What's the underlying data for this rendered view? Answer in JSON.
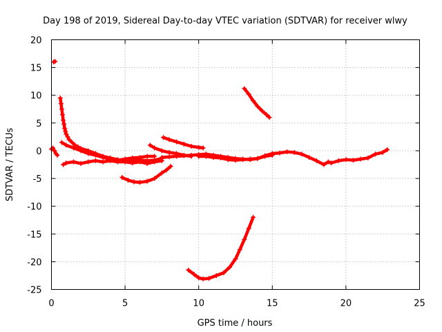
{
  "chart_data": {
    "type": "scatter",
    "title": "Day 198 of 2019, Sidereal Day-to-day VTEC variation (SDTVAR) for receiver wlwy",
    "xlabel": "GPS time / hours",
    "ylabel": "SDTVAR / TECUs",
    "xlim": [
      0,
      25
    ],
    "ylim": [
      -25,
      20
    ],
    "xticks": [
      0,
      5,
      10,
      15,
      20,
      25
    ],
    "yticks": [
      -25,
      -20,
      -15,
      -10,
      -5,
      0,
      5,
      10,
      15,
      20
    ],
    "grid": true,
    "marker": "+",
    "color": "#ff0000",
    "series": [
      {
        "name": "start-cluster",
        "points": [
          [
            0.0,
            0.3
          ],
          [
            0.1,
            0.5
          ],
          [
            0.2,
            0.0
          ],
          [
            0.3,
            -0.5
          ],
          [
            0.4,
            -0.8
          ]
        ]
      },
      {
        "name": "isolated-high",
        "points": [
          [
            0.15,
            16.0
          ],
          [
            0.25,
            16.1
          ]
        ]
      },
      {
        "name": "decay-spike",
        "points": [
          [
            0.6,
            9.5
          ],
          [
            0.65,
            8.5
          ],
          [
            0.7,
            7.5
          ],
          [
            0.75,
            6.5
          ],
          [
            0.8,
            5.5
          ],
          [
            0.85,
            4.8
          ],
          [
            0.9,
            4.0
          ],
          [
            0.95,
            3.5
          ],
          [
            1.0,
            3.0
          ],
          [
            1.1,
            2.5
          ],
          [
            1.2,
            2.0
          ],
          [
            1.4,
            1.5
          ],
          [
            1.6,
            1.0
          ],
          [
            1.8,
            0.7
          ],
          [
            2.0,
            0.4
          ],
          [
            2.5,
            0.0
          ],
          [
            3.0,
            -0.5
          ],
          [
            3.5,
            -1.0
          ],
          [
            4.0,
            -1.3
          ],
          [
            4.5,
            -1.6
          ],
          [
            5.0,
            -1.8
          ],
          [
            5.5,
            -1.8
          ],
          [
            6.0,
            -1.7
          ],
          [
            6.5,
            -1.8
          ],
          [
            7.0,
            -1.7
          ],
          [
            7.5,
            -1.4
          ]
        ]
      },
      {
        "name": "lower-early",
        "points": [
          [
            0.8,
            -2.5
          ],
          [
            1.0,
            -2.2
          ],
          [
            1.5,
            -2.0
          ],
          [
            2.0,
            -2.3
          ],
          [
            2.5,
            -2.0
          ],
          [
            3.0,
            -1.8
          ],
          [
            3.5,
            -2.0
          ],
          [
            4.0,
            -1.8
          ],
          [
            4.5,
            -2.0
          ],
          [
            5.0,
            -2.0
          ],
          [
            5.5,
            -2.2
          ],
          [
            6.0,
            -2.0
          ],
          [
            6.5,
            -2.3
          ],
          [
            7.0,
            -2.0
          ],
          [
            7.5,
            -1.8
          ]
        ]
      },
      {
        "name": "near-zero-early",
        "points": [
          [
            0.7,
            1.5
          ],
          [
            1.0,
            1.0
          ],
          [
            1.5,
            0.5
          ],
          [
            2.0,
            0.0
          ],
          [
            2.5,
            -0.5
          ],
          [
            3.0,
            -0.8
          ],
          [
            3.5,
            -1.2
          ],
          [
            4.0,
            -1.5
          ],
          [
            4.5,
            -1.7
          ],
          [
            5.0,
            -1.5
          ],
          [
            5.5,
            -1.3
          ],
          [
            6.0,
            -1.2
          ],
          [
            6.5,
            -1.0
          ],
          [
            7.0,
            -1.0
          ]
        ]
      },
      {
        "name": "dip-arc",
        "points": [
          [
            4.8,
            -4.8
          ],
          [
            5.2,
            -5.3
          ],
          [
            5.6,
            -5.6
          ],
          [
            6.0,
            -5.7
          ],
          [
            6.5,
            -5.5
          ],
          [
            7.0,
            -5.0
          ],
          [
            7.5,
            -4.0
          ],
          [
            7.8,
            -3.5
          ],
          [
            8.1,
            -2.8
          ]
        ]
      },
      {
        "name": "upper-segment",
        "points": [
          [
            7.6,
            2.4
          ],
          [
            8.0,
            2.0
          ],
          [
            8.5,
            1.6
          ],
          [
            9.0,
            1.2
          ],
          [
            9.5,
            0.8
          ],
          [
            10.0,
            0.6
          ],
          [
            10.3,
            0.5
          ]
        ]
      },
      {
        "name": "middle-segment",
        "points": [
          [
            6.7,
            1.0
          ],
          [
            7.0,
            0.5
          ],
          [
            7.5,
            0.0
          ],
          [
            8.0,
            -0.3
          ],
          [
            8.5,
            -0.5
          ],
          [
            9.0,
            -0.8
          ],
          [
            9.5,
            -1.0
          ]
        ]
      },
      {
        "name": "baseline",
        "points": [
          [
            7.5,
            -1.2
          ],
          [
            8.0,
            -1.1
          ],
          [
            8.5,
            -1.0
          ],
          [
            9.0,
            -0.9
          ],
          [
            9.5,
            -0.8
          ],
          [
            10.0,
            -0.7
          ],
          [
            10.5,
            -0.6
          ],
          [
            11.0,
            -0.8
          ],
          [
            11.5,
            -1.0
          ],
          [
            12.0,
            -1.2
          ],
          [
            12.5,
            -1.4
          ],
          [
            13.0,
            -1.5
          ],
          [
            13.5,
            -1.6
          ],
          [
            14.0,
            -1.4
          ],
          [
            14.5,
            -0.9
          ],
          [
            15.0,
            -0.5
          ],
          [
            15.5,
            -0.4
          ],
          [
            16.0,
            -0.2
          ],
          [
            16.5,
            -0.3
          ],
          [
            17.0,
            -0.6
          ],
          [
            17.5,
            -1.2
          ],
          [
            18.0,
            -1.8
          ],
          [
            18.5,
            -2.5
          ],
          [
            18.8,
            -2.0
          ],
          [
            19.0,
            -2.2
          ],
          [
            19.5,
            -1.8
          ],
          [
            20.0,
            -1.6
          ],
          [
            20.5,
            -1.7
          ],
          [
            21.0,
            -1.5
          ],
          [
            21.5,
            -1.3
          ],
          [
            22.0,
            -0.6
          ],
          [
            22.5,
            -0.3
          ],
          [
            22.8,
            0.2
          ]
        ]
      },
      {
        "name": "lower-baseline",
        "points": [
          [
            10.0,
            -1.0
          ],
          [
            10.5,
            -1.0
          ],
          [
            11.0,
            -1.2
          ],
          [
            11.5,
            -1.3
          ],
          [
            12.0,
            -1.6
          ],
          [
            12.5,
            -1.7
          ],
          [
            13.0,
            -1.6
          ],
          [
            13.5,
            -1.5
          ],
          [
            14.0,
            -1.4
          ],
          [
            14.5,
            -1.0
          ],
          [
            15.0,
            -0.8
          ]
        ]
      },
      {
        "name": "high-arc",
        "points": [
          [
            13.1,
            11.2
          ],
          [
            13.4,
            10.2
          ],
          [
            13.7,
            9.0
          ],
          [
            14.0,
            8.0
          ],
          [
            14.3,
            7.2
          ],
          [
            14.6,
            6.5
          ],
          [
            14.8,
            6.0
          ]
        ]
      },
      {
        "name": "deep-arc",
        "points": [
          [
            9.3,
            -21.5
          ],
          [
            9.7,
            -22.3
          ],
          [
            10.0,
            -22.9
          ],
          [
            10.3,
            -23.1
          ],
          [
            10.7,
            -23.0
          ],
          [
            11.2,
            -22.5
          ],
          [
            11.7,
            -22.0
          ],
          [
            12.1,
            -21.0
          ],
          [
            12.5,
            -19.5
          ],
          [
            12.8,
            -17.8
          ],
          [
            13.1,
            -16.0
          ],
          [
            13.4,
            -14.0
          ],
          [
            13.7,
            -12.0
          ]
        ]
      }
    ]
  }
}
